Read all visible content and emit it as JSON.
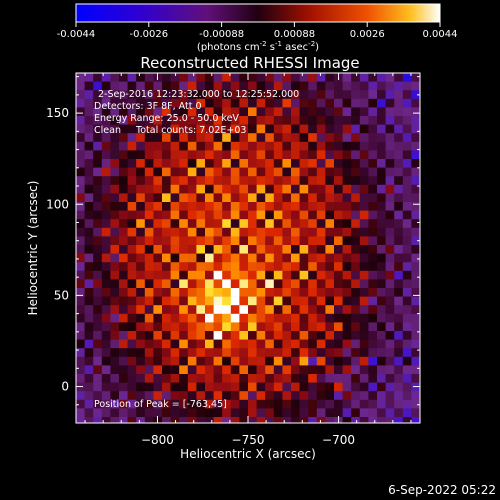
{
  "colorbar": {
    "ticks": [
      "-0.0044",
      "-0.0026",
      "-0.00088",
      "0.00088",
      "0.0026",
      "0.0044"
    ],
    "units_main": "(photons cm",
    "units_sup1": "-2",
    "units_mid1": " s",
    "units_sup2": "-1",
    "units_mid2": " asec",
    "units_sup3": "-2",
    "units_end": ")"
  },
  "chart_data": {
    "type": "heatmap",
    "title": "Reconstructed RHESSI Image",
    "xlabel": "Heliocentric X (arcsec)",
    "ylabel": "Heliocentric Y (arcsec)",
    "xlim": [
      -845,
      -655
    ],
    "ylim": [
      -20,
      172
    ],
    "xticks": [
      -800,
      -750,
      -700
    ],
    "yticks": [
      0,
      50,
      100,
      150
    ],
    "colorscale_range": [
      -0.0044,
      0.0044
    ],
    "peak": [
      -763,
      45
    ],
    "annotations": [
      "2-Sep-2016 12:23:32.000 to 12:25:52.000",
      "Detectors: 3F 8F, Att 0",
      "Energy Range: 25.0 - 50.0 keV",
      "Clean     Total counts: 7.02E+03"
    ],
    "peak_label": "Position of Peak = [-763,45]"
  },
  "footer": {
    "timestamp": "6-Sep-2022 05:22"
  },
  "colors": {
    "background": "#000000",
    "text": "#ffffff"
  }
}
